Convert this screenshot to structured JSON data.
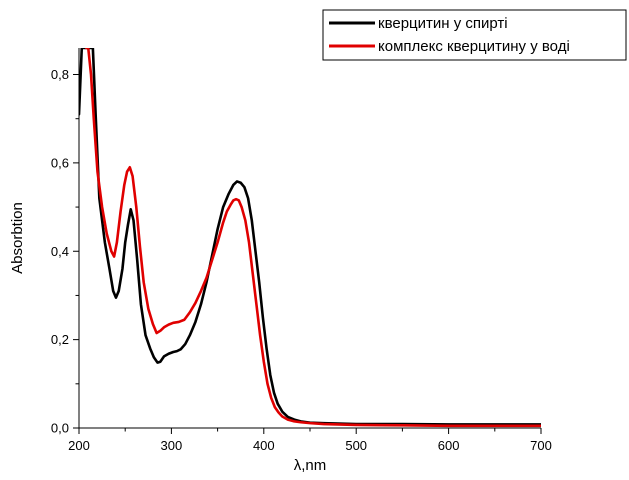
{
  "chart_data": {
    "type": "line",
    "title": "",
    "xlabel": "λ,nm",
    "ylabel": "Absorbtion",
    "xlim": [
      200,
      700
    ],
    "ylim": [
      0.0,
      0.86
    ],
    "x_ticks": [
      200,
      300,
      400,
      500,
      600,
      700
    ],
    "x_tick_labels": [
      "200",
      "300",
      "400",
      "500",
      "600",
      "700"
    ],
    "y_ticks": [
      0.0,
      0.2,
      0.4,
      0.6,
      0.8
    ],
    "y_tick_labels": [
      "0,0",
      "0,2",
      "0,4",
      "0,6",
      "0,8"
    ],
    "grid": false,
    "legend_position": "top-right",
    "series": [
      {
        "name": "кверцитин у спирті",
        "color": "#000000",
        "x": [
          200,
          203,
          205,
          208,
          211,
          213,
          215,
          218,
          222,
          228,
          233,
          237,
          240,
          243,
          247,
          250,
          253,
          256,
          259,
          263,
          267,
          272,
          277,
          281,
          285,
          288,
          292,
          297,
          302,
          306,
          310,
          315,
          320,
          326,
          332,
          338,
          344,
          350,
          356,
          362,
          367,
          371,
          375,
          379,
          383,
          387,
          391,
          395,
          399,
          403,
          407,
          411,
          415,
          420,
          426,
          433,
          440,
          450,
          465,
          480,
          500,
          550,
          600,
          650,
          700
        ],
        "y": [
          0.71,
          0.86,
          0.86,
          0.86,
          0.86,
          0.86,
          0.86,
          0.71,
          0.52,
          0.42,
          0.36,
          0.31,
          0.295,
          0.31,
          0.36,
          0.42,
          0.46,
          0.495,
          0.47,
          0.38,
          0.28,
          0.21,
          0.18,
          0.16,
          0.148,
          0.15,
          0.162,
          0.168,
          0.172,
          0.174,
          0.178,
          0.19,
          0.21,
          0.24,
          0.28,
          0.33,
          0.39,
          0.45,
          0.5,
          0.53,
          0.55,
          0.558,
          0.555,
          0.545,
          0.52,
          0.47,
          0.4,
          0.33,
          0.25,
          0.18,
          0.12,
          0.08,
          0.055,
          0.037,
          0.025,
          0.019,
          0.015,
          0.012,
          0.011,
          0.01,
          0.009,
          0.009,
          0.008,
          0.008,
          0.008
        ]
      },
      {
        "name": "комплекс кверцитину у воді",
        "color": "#e00000",
        "x": [
          208,
          210,
          213,
          216,
          220,
          225,
          230,
          235,
          238,
          241,
          245,
          249,
          252,
          255,
          258,
          262,
          266,
          270,
          275,
          280,
          284,
          288,
          292,
          297,
          302,
          308,
          314,
          320,
          326,
          332,
          338,
          344,
          350,
          356,
          360,
          364,
          367,
          370,
          373,
          376,
          380,
          384,
          388,
          392,
          396,
          400,
          404,
          408,
          412,
          416,
          420,
          426,
          433,
          440,
          450,
          465,
          480,
          500,
          550,
          600,
          650,
          700
        ],
        "y": [
          0.86,
          0.86,
          0.8,
          0.7,
          0.58,
          0.5,
          0.44,
          0.4,
          0.388,
          0.42,
          0.49,
          0.55,
          0.58,
          0.59,
          0.57,
          0.5,
          0.41,
          0.33,
          0.27,
          0.235,
          0.215,
          0.22,
          0.228,
          0.234,
          0.238,
          0.24,
          0.245,
          0.262,
          0.283,
          0.31,
          0.34,
          0.38,
          0.42,
          0.465,
          0.49,
          0.505,
          0.515,
          0.518,
          0.515,
          0.5,
          0.47,
          0.42,
          0.35,
          0.28,
          0.21,
          0.15,
          0.1,
          0.068,
          0.047,
          0.035,
          0.026,
          0.019,
          0.015,
          0.013,
          0.011,
          0.009,
          0.008,
          0.007,
          0.006,
          0.005,
          0.005,
          0.005
        ]
      }
    ]
  }
}
